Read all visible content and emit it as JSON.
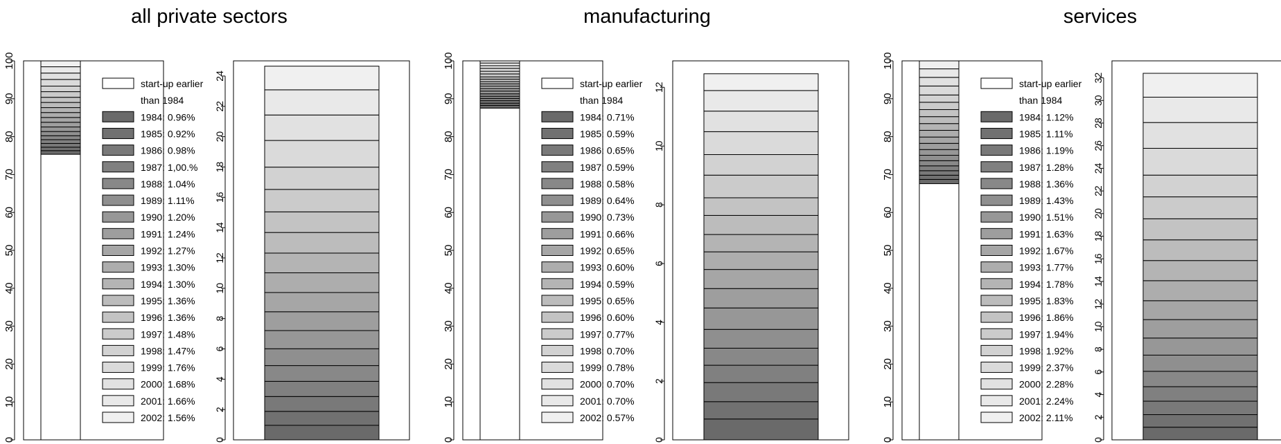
{
  "chart_data": [
    {
      "type": "bar",
      "title": "all private sectors",
      "stack_ylim": [
        0,
        100
      ],
      "stack_ticks": [
        0,
        10,
        20,
        30,
        40,
        50,
        60,
        70,
        80,
        90,
        100
      ],
      "detail_ylim": [
        0,
        25
      ],
      "detail_ticks": [
        0,
        2,
        4,
        6,
        8,
        10,
        12,
        14,
        16,
        18,
        20,
        22,
        24
      ],
      "earlier_label": [
        "start-up earlier",
        "than 1984"
      ],
      "series": [
        {
          "name": "1984",
          "label": "1984: 0.96%",
          "value": 0.96
        },
        {
          "name": "1985",
          "label": "1985: 0.92%",
          "value": 0.92
        },
        {
          "name": "1986",
          "label": "1986: 0.98%",
          "value": 0.98
        },
        {
          "name": "1987",
          "label": "1987: 1,00.%",
          "value": 1.0
        },
        {
          "name": "1988",
          "label": "1988: 1.04%",
          "value": 1.04
        },
        {
          "name": "1989",
          "label": "1989: 1.11%",
          "value": 1.11
        },
        {
          "name": "1990",
          "label": "1990: 1.20%",
          "value": 1.2
        },
        {
          "name": "1991",
          "label": "1991: 1.24%",
          "value": 1.24
        },
        {
          "name": "1992",
          "label": "1992: 1.27%",
          "value": 1.27
        },
        {
          "name": "1993",
          "label": "1993: 1.30%",
          "value": 1.3
        },
        {
          "name": "1994",
          "label": "1994: 1.30%",
          "value": 1.3
        },
        {
          "name": "1995",
          "label": "1995: 1.36%",
          "value": 1.36
        },
        {
          "name": "1996",
          "label": "1996: 1.36%",
          "value": 1.36
        },
        {
          "name": "1997",
          "label": "1997: 1.48%",
          "value": 1.48
        },
        {
          "name": "1998",
          "label": "1998: 1.47%",
          "value": 1.47
        },
        {
          "name": "1999",
          "label": "1999: 1.76%",
          "value": 1.76
        },
        {
          "name": "2000",
          "label": "2000: 1.68%",
          "value": 1.68
        },
        {
          "name": "2001",
          "label": "2001: 1.66%",
          "value": 1.66
        },
        {
          "name": "2002",
          "label": "2002: 1.56%",
          "value": 1.56
        }
      ]
    },
    {
      "type": "bar",
      "title": "manufacturing",
      "stack_ylim": [
        0,
        100
      ],
      "stack_ticks": [
        0,
        10,
        20,
        30,
        40,
        50,
        60,
        70,
        80,
        90,
        100
      ],
      "detail_ylim": [
        0,
        12.9
      ],
      "detail_ticks": [
        0,
        2,
        4,
        6,
        8,
        10,
        12
      ],
      "earlier_label": [
        "start-up earlier",
        "than 1984"
      ],
      "series": [
        {
          "name": "1984",
          "label": "1984: 0.71%",
          "value": 0.71
        },
        {
          "name": "1985",
          "label": "1985: 0.59%",
          "value": 0.59
        },
        {
          "name": "1986",
          "label": "1986: 0.65%",
          "value": 0.65
        },
        {
          "name": "1987",
          "label": "1987: 0.59%",
          "value": 0.59
        },
        {
          "name": "1988",
          "label": "1988: 0.58%",
          "value": 0.58
        },
        {
          "name": "1989",
          "label": "1989: 0.64%",
          "value": 0.64
        },
        {
          "name": "1990",
          "label": "1990: 0.73%",
          "value": 0.73
        },
        {
          "name": "1991",
          "label": "1991: 0.66%",
          "value": 0.66
        },
        {
          "name": "1992",
          "label": "1992: 0.65%",
          "value": 0.65
        },
        {
          "name": "1993",
          "label": "1993: 0.60%",
          "value": 0.6
        },
        {
          "name": "1994",
          "label": "1994: 0.59%",
          "value": 0.59
        },
        {
          "name": "1995",
          "label": "1995: 0.65%",
          "value": 0.65
        },
        {
          "name": "1996",
          "label": "1996: 0.60%",
          "value": 0.6
        },
        {
          "name": "1997",
          "label": "1997: 0.77%",
          "value": 0.77
        },
        {
          "name": "1998",
          "label": "1998: 0.70%",
          "value": 0.7
        },
        {
          "name": "1999",
          "label": "1999: 0.78%",
          "value": 0.78
        },
        {
          "name": "2000",
          "label": "2000: 0.70%",
          "value": 0.7
        },
        {
          "name": "2001",
          "label": "2001: 0.70%",
          "value": 0.7
        },
        {
          "name": "2002",
          "label": "2002: 0.57%",
          "value": 0.57
        }
      ]
    },
    {
      "type": "bar",
      "title": "services",
      "stack_ylim": [
        0,
        100
      ],
      "stack_ticks": [
        0,
        10,
        20,
        30,
        40,
        50,
        60,
        70,
        80,
        90,
        100
      ],
      "detail_ylim": [
        0,
        33.5
      ],
      "detail_ticks": [
        0,
        2,
        4,
        6,
        8,
        10,
        12,
        14,
        16,
        18,
        20,
        22,
        24,
        26,
        28,
        30,
        32
      ],
      "earlier_label": [
        "start-up earlier",
        "than 1984"
      ],
      "series": [
        {
          "name": "1984",
          "label": "1984: 1.12%",
          "value": 1.12
        },
        {
          "name": "1985",
          "label": "1985: 1.11%",
          "value": 1.11
        },
        {
          "name": "1986",
          "label": "1986: 1.19%",
          "value": 1.19
        },
        {
          "name": "1987",
          "label": "1987: 1.28%",
          "value": 1.28
        },
        {
          "name": "1988",
          "label": "1988: 1.36%",
          "value": 1.36
        },
        {
          "name": "1989",
          "label": "1989: 1.43%",
          "value": 1.43
        },
        {
          "name": "1990",
          "label": "1990: 1.51%",
          "value": 1.51
        },
        {
          "name": "1991",
          "label": "1991: 1.63%",
          "value": 1.63
        },
        {
          "name": "1992",
          "label": "1992: 1.67%",
          "value": 1.67
        },
        {
          "name": "1993",
          "label": "1993: 1.77%",
          "value": 1.77
        },
        {
          "name": "1994",
          "label": "1994: 1.78%",
          "value": 1.78
        },
        {
          "name": "1995",
          "label": "1995: 1.83%",
          "value": 1.83
        },
        {
          "name": "1996",
          "label": "1996: 1.86%",
          "value": 1.86
        },
        {
          "name": "1997",
          "label": "1997: 1.94%",
          "value": 1.94
        },
        {
          "name": "1998",
          "label": "1998: 1.92%",
          "value": 1.92
        },
        {
          "name": "1999",
          "label": "1999: 2.37%",
          "value": 2.37
        },
        {
          "name": "2000",
          "label": "2000: 2.28%",
          "value": 2.28
        },
        {
          "name": "2001",
          "label": "2001: 2.24%",
          "value": 2.24
        },
        {
          "name": "2002",
          "label": "2002: 2.11%",
          "value": 2.11
        }
      ]
    }
  ],
  "colors": {
    "background": "#ffffff",
    "axis": "#000000",
    "earlier_fill": "#ffffff",
    "first_year_fill": "#6a6a6a",
    "last_year_fill": "#f0f0f0"
  }
}
